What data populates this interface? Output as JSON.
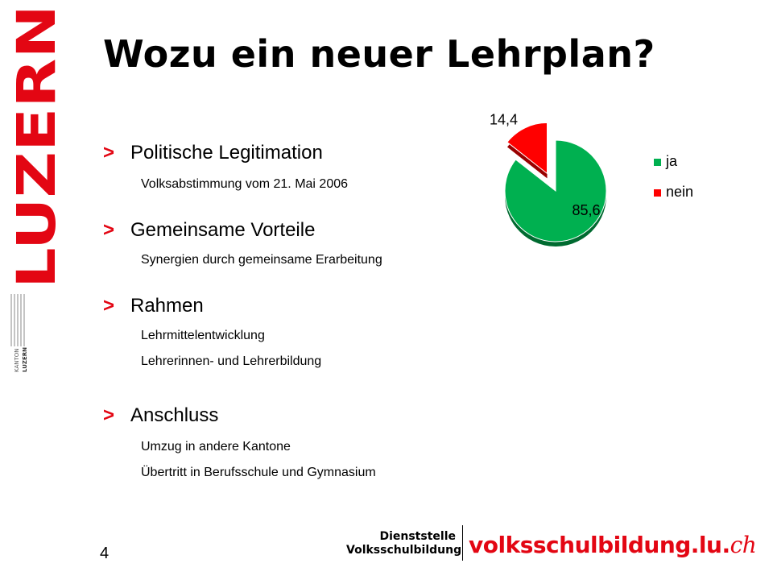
{
  "brand": {
    "wordmark": "LUZERN",
    "seal_top": "KANTON",
    "seal_bottom": "LUZERN",
    "accent_color": "#e30613"
  },
  "title": "Wozu ein neuer Lehrplan?",
  "bullets": [
    {
      "marker": ">",
      "heading": "Politische Legitimation",
      "subs": [
        "Volksabstimmung vom 21. Mai 2006"
      ]
    },
    {
      "marker": ">",
      "heading": "Gemeinsame Vorteile",
      "subs": [
        "Synergien durch gemeinsame Erarbeitung"
      ]
    },
    {
      "marker": ">",
      "heading": "Rahmen",
      "subs": [
        "Lehrmittelentwicklung",
        "Lehrerinnen- und Lehrerbildung"
      ]
    },
    {
      "marker": ">",
      "heading": "Anschluss",
      "subs": [
        "Umzug in andere Kantone",
        "Übertritt in Berufsschule und Gymnasium"
      ]
    }
  ],
  "chart_data": {
    "type": "pie",
    "title": "",
    "slices": [
      {
        "label": "ja",
        "value": 85.6,
        "value_label": "85,6",
        "color": "#00b050"
      },
      {
        "label": "nein",
        "value": 14.4,
        "value_label": "14,4",
        "color": "#ff0000"
      }
    ],
    "exploded": "nein",
    "legend": "right",
    "style": "3d"
  },
  "page_number": "4",
  "footer": {
    "dienststelle_line1": "Dienststelle",
    "dienststelle_line2": "Volksschulbildung",
    "site_name": "volksschulbildung.lu.",
    "site_tld": "ch"
  }
}
